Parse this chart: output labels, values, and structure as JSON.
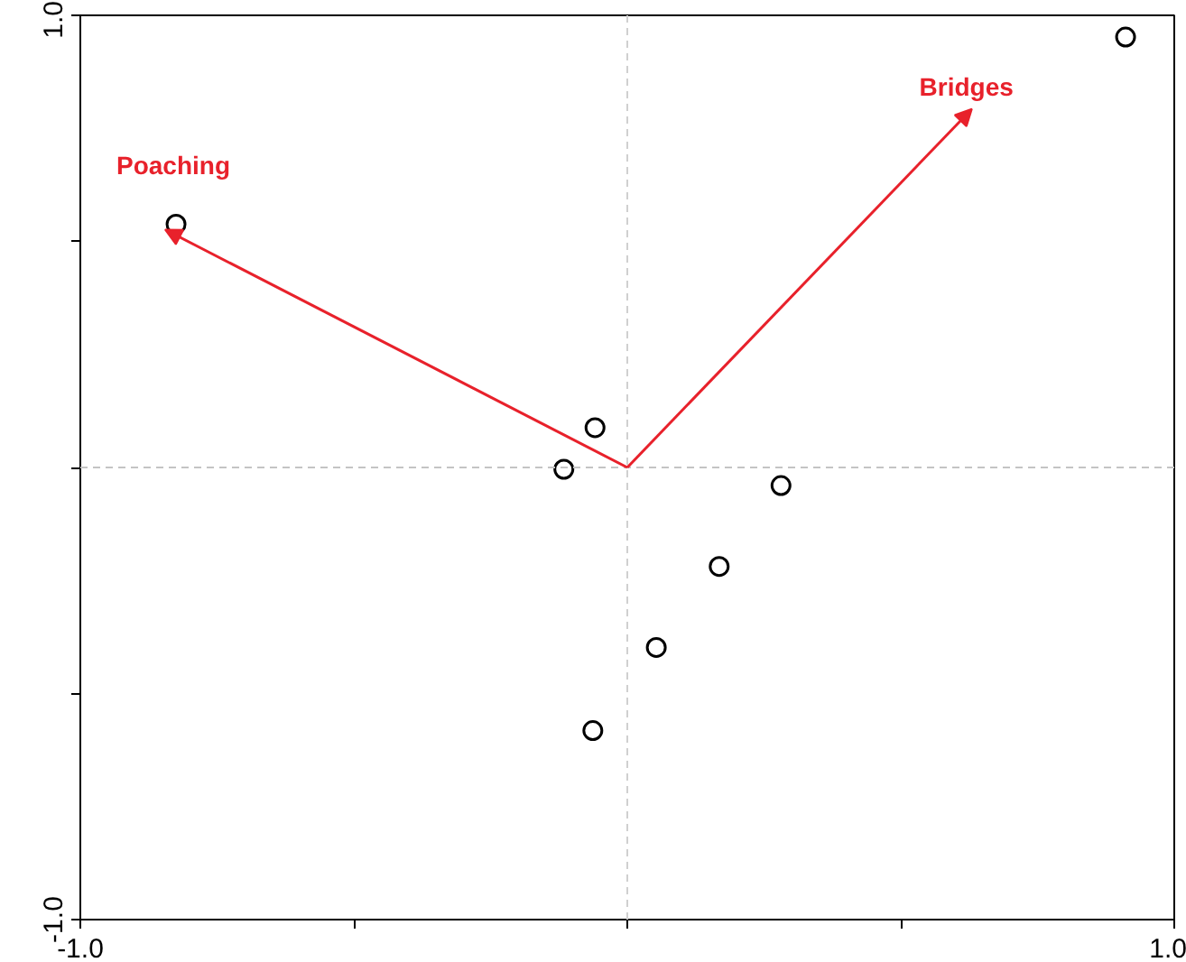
{
  "chart_data": {
    "type": "scatter",
    "xlim": [
      -1.0,
      1.0
    ],
    "ylim": [
      -1.0,
      1.0
    ],
    "xticks": [
      {
        "value": -1.0,
        "label": "-1.0"
      },
      {
        "value": -0.5,
        "label": null
      },
      {
        "value": 0,
        "label": null
      },
      {
        "value": 0.5,
        "label": null
      },
      {
        "value": 1.0,
        "label": "1.0"
      }
    ],
    "yticks": [
      {
        "value": -1.0,
        "label": "-1.0"
      },
      {
        "value": -0.5,
        "label": null
      },
      {
        "value": 0,
        "label": null
      },
      {
        "value": 0.5,
        "label": null
      },
      {
        "value": 1.0,
        "label": "1.0"
      }
    ],
    "grid": false,
    "marker": "circle",
    "ref_lines": [
      {
        "axis": "x",
        "value": 0,
        "color": "#d0d0d0",
        "line_style": "dashed"
      },
      {
        "axis": "y",
        "value": 0,
        "color": "#c4c4c4",
        "line_style": "dashed"
      }
    ],
    "annotations": [
      "Poaching",
      "Bridges"
    ],
    "series": [
      {
        "color": "#000000",
        "x": [
          0.911,
          -0.825,
          -0.059,
          -0.116,
          0.281,
          0.168,
          0.053,
          -0.063
        ],
        "values": [
          0.952,
          0.538,
          0.088,
          -0.004,
          -0.04,
          -0.219,
          -0.398,
          -0.582
        ]
      }
    ]
  }
}
